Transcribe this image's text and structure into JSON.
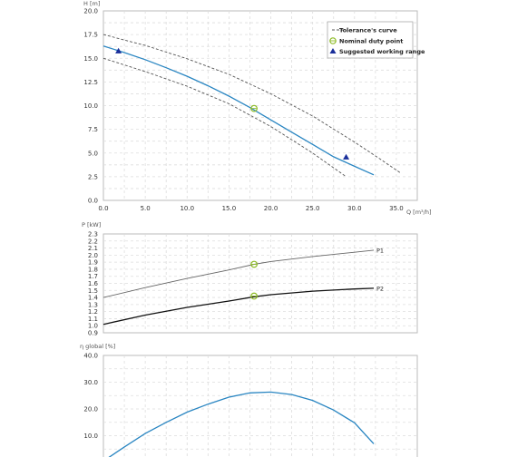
{
  "chart_data": [
    {
      "type": "line",
      "ylabel": "H [m]",
      "xlabel": "Q [m³/h]",
      "xlim": [
        0,
        37.5
      ],
      "ylim": [
        0,
        20
      ],
      "xticks": [
        0.0,
        5.0,
        10.0,
        15.0,
        20.0,
        25.0,
        30.0,
        35.0
      ],
      "yticks": [
        0.0,
        2.5,
        5.0,
        7.5,
        10.0,
        12.5,
        15.0,
        17.5,
        20.0
      ],
      "grid": true,
      "legend_position": "top-right",
      "legend": [
        "Tolerance's curve",
        "Nominal duty point",
        "Suggested working range"
      ],
      "series": [
        {
          "role": "curve",
          "color": "#2a86c2",
          "x": [
            0,
            2.5,
            5,
            7.5,
            10,
            12.5,
            15,
            17.5,
            20,
            22.5,
            25,
            27.5,
            30,
            32.3
          ],
          "y": [
            16.3,
            15.6,
            14.85,
            14.0,
            13.1,
            12.1,
            11.0,
            9.8,
            8.5,
            7.2,
            5.9,
            4.6,
            3.6,
            2.7
          ]
        },
        {
          "role": "tolerance-upper",
          "color": "#555555",
          "x": [
            0,
            5,
            10,
            15,
            20,
            25,
            30,
            33,
            35.5
          ],
          "y": [
            17.5,
            16.35,
            14.95,
            13.3,
            11.25,
            8.9,
            6.15,
            4.4,
            2.9
          ]
        },
        {
          "role": "tolerance-lower",
          "color": "#555555",
          "x": [
            0,
            5,
            10,
            15,
            20,
            25,
            27,
            29
          ],
          "y": [
            15.0,
            13.6,
            12.05,
            10.2,
            7.8,
            5.0,
            3.75,
            2.5
          ]
        }
      ],
      "duty_point": {
        "x": 18,
        "y": 9.7,
        "color": "#8dbb25"
      },
      "working_range": [
        {
          "x": 1.8,
          "y": 15.8
        },
        {
          "x": 29,
          "y": 4.6
        }
      ],
      "working_range_color": "#1a2f9a"
    },
    {
      "type": "line",
      "ylabel": "P [kW]",
      "xlim": [
        0,
        37.5
      ],
      "ylim": [
        0.9,
        2.3
      ],
      "yticks": [
        0.9,
        1.0,
        1.1,
        1.2,
        1.3,
        1.4,
        1.5,
        1.6,
        1.7,
        1.8,
        1.9,
        2.0,
        2.1,
        2.2,
        2.3
      ],
      "grid": true,
      "series": [
        {
          "name": "P1",
          "color": "#666666",
          "x": [
            0,
            5,
            10,
            15,
            18,
            20,
            25,
            30,
            32.3
          ],
          "y": [
            1.4,
            1.54,
            1.67,
            1.79,
            1.87,
            1.91,
            1.98,
            2.04,
            2.07
          ]
        },
        {
          "name": "P2",
          "color": "#111111",
          "x": [
            0,
            5,
            10,
            15,
            18,
            20,
            25,
            30,
            32.3
          ],
          "y": [
            1.02,
            1.15,
            1.26,
            1.35,
            1.41,
            1.44,
            1.49,
            1.52,
            1.53
          ]
        }
      ],
      "duty_points": [
        {
          "x": 18,
          "y": 1.87
        },
        {
          "x": 18,
          "y": 1.42
        }
      ],
      "duty_point_color": "#8dbb25"
    },
    {
      "type": "line",
      "ylabel": "η global [%]",
      "xlim": [
        0,
        37.5
      ],
      "ylim": [
        0,
        40
      ],
      "yticks": [
        0.0,
        10.0,
        20.0,
        30.0,
        40.0
      ],
      "grid": true,
      "series": [
        {
          "color": "#2a86c2",
          "x": [
            0,
            2.5,
            5,
            7.5,
            10,
            12.5,
            15,
            17.5,
            20,
            22.5,
            25,
            27.5,
            30,
            32.3
          ],
          "y": [
            0.5,
            5.8,
            10.8,
            15.0,
            18.8,
            21.8,
            24.4,
            26.0,
            26.3,
            25.4,
            23.2,
            19.6,
            14.8,
            7.0
          ]
        }
      ]
    }
  ]
}
